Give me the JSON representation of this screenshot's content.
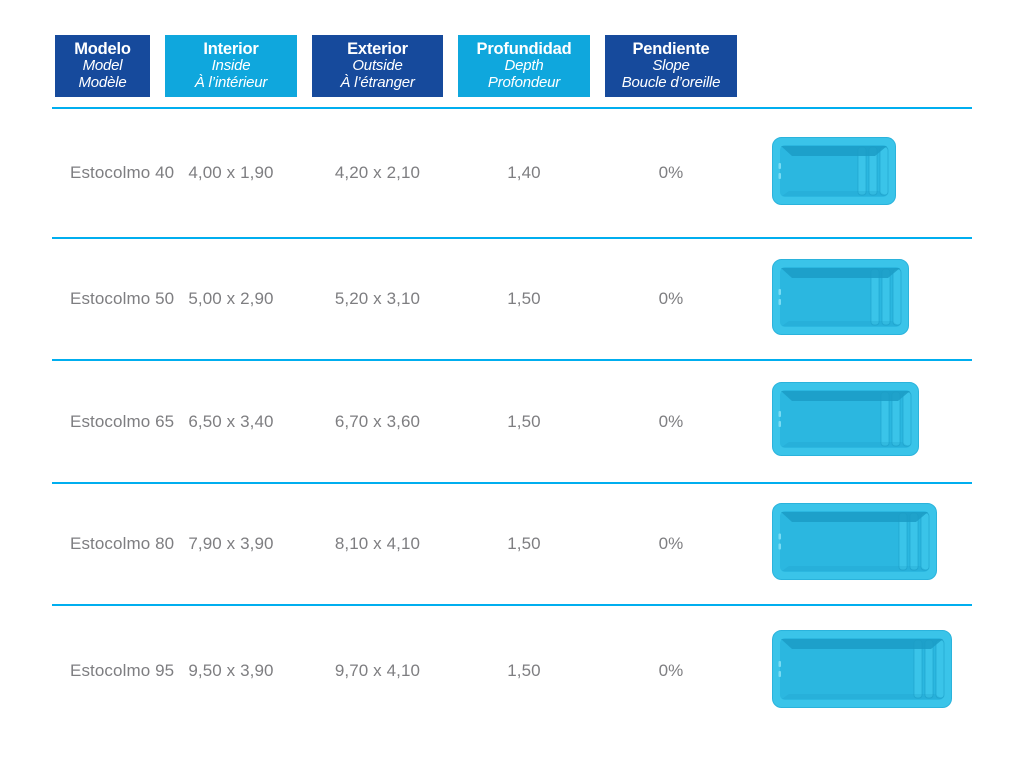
{
  "header": {
    "columns": [
      {
        "primary": "Modelo",
        "secondary": "Model",
        "tertiary": "Modèle"
      },
      {
        "primary": "Interior",
        "secondary": "Inside",
        "tertiary": "À l’intérieur"
      },
      {
        "primary": "Exterior",
        "secondary": "Outside",
        "tertiary": "À l’étranger"
      },
      {
        "primary": "Profundidad",
        "secondary": "Depth",
        "tertiary": "Profondeur"
      },
      {
        "primary": "Pendiente",
        "secondary": "Slope",
        "tertiary": "Boucle d’oreille"
      }
    ]
  },
  "rows": [
    {
      "model": "Estocolmo 40",
      "interior": "4,00 x 1,90",
      "exterior": "4,20 x 2,10",
      "depth": "1,40",
      "slope": "0%"
    },
    {
      "model": "Estocolmo 50",
      "interior": "5,00 x 2,90",
      "exterior": "5,20 x 3,10",
      "depth": "1,50",
      "slope": "0%"
    },
    {
      "model": "Estocolmo 65",
      "interior": "6,50 x 3,40",
      "exterior": "6,70 x 3,60",
      "depth": "1,50",
      "slope": "0%"
    },
    {
      "model": "Estocolmo 80",
      "interior": "7,90 x 3,90",
      "exterior": "8,10 x 4,10",
      "depth": "1,50",
      "slope": "0%"
    },
    {
      "model": "Estocolmo 95",
      "interior": "9,50 x 3,90",
      "exterior": "9,70 x 4,10",
      "depth": "1,50",
      "slope": "0%"
    }
  ],
  "icons": {
    "pool": "pool-top-view"
  },
  "colors": {
    "header_dark": "#164a9c",
    "header_light": "#0fa7dd",
    "divider": "#00aeef",
    "body_text": "#7e7e81",
    "pool_rim": "#3ac4e9",
    "pool_rim_edge": "#2ab3dc",
    "pool_basin": "#2bb7e0",
    "pool_shadow": "#1b9cc6",
    "pool_notch": "#7adcf4"
  },
  "chart_data": {
    "type": "table",
    "columns": [
      "Modelo / Model / Modèle",
      "Interior / Inside / À l’intérieur",
      "Exterior / Outside / À l’étranger",
      "Profundidad / Depth / Profondeur",
      "Pendiente / Slope / Boucle d’oreille"
    ],
    "rows": [
      [
        "Estocolmo 40",
        "4,00 x 1,90",
        "4,20 x 2,10",
        "1,40",
        "0%"
      ],
      [
        "Estocolmo 50",
        "5,00 x 2,90",
        "5,20 x 3,10",
        "1,50",
        "0%"
      ],
      [
        "Estocolmo 65",
        "6,50 x 3,40",
        "6,70 x 3,60",
        "1,50",
        "0%"
      ],
      [
        "Estocolmo 80",
        "7,90 x 3,90",
        "8,10 x 4,10",
        "1,50",
        "0%"
      ],
      [
        "Estocolmo 95",
        "9,50 x 3,90",
        "9,70 x 4,10",
        "1,50",
        "0%"
      ]
    ]
  }
}
